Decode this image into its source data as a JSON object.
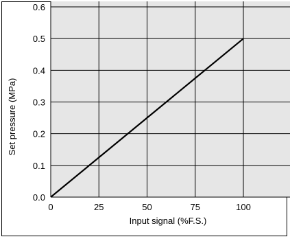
{
  "chart_data": {
    "type": "line",
    "xlabel": "Input signal  (%F.S.)",
    "ylabel": "Set pressure  (MPa)",
    "xlim": [
      0,
      125
    ],
    "ylim": [
      0,
      0.6
    ],
    "x_ticks": [
      "0",
      "25",
      "50",
      "75",
      "100"
    ],
    "y_ticks": [
      "0.0",
      "0.1",
      "0.2",
      "0.3",
      "0.4",
      "0.5",
      "0.6"
    ],
    "grid": true,
    "series": [
      {
        "x": [
          0,
          100
        ],
        "y": [
          0.0,
          0.5
        ],
        "color": "#000000"
      }
    ],
    "plot_background": "#e6e6e6",
    "grid_color": "#000000"
  }
}
